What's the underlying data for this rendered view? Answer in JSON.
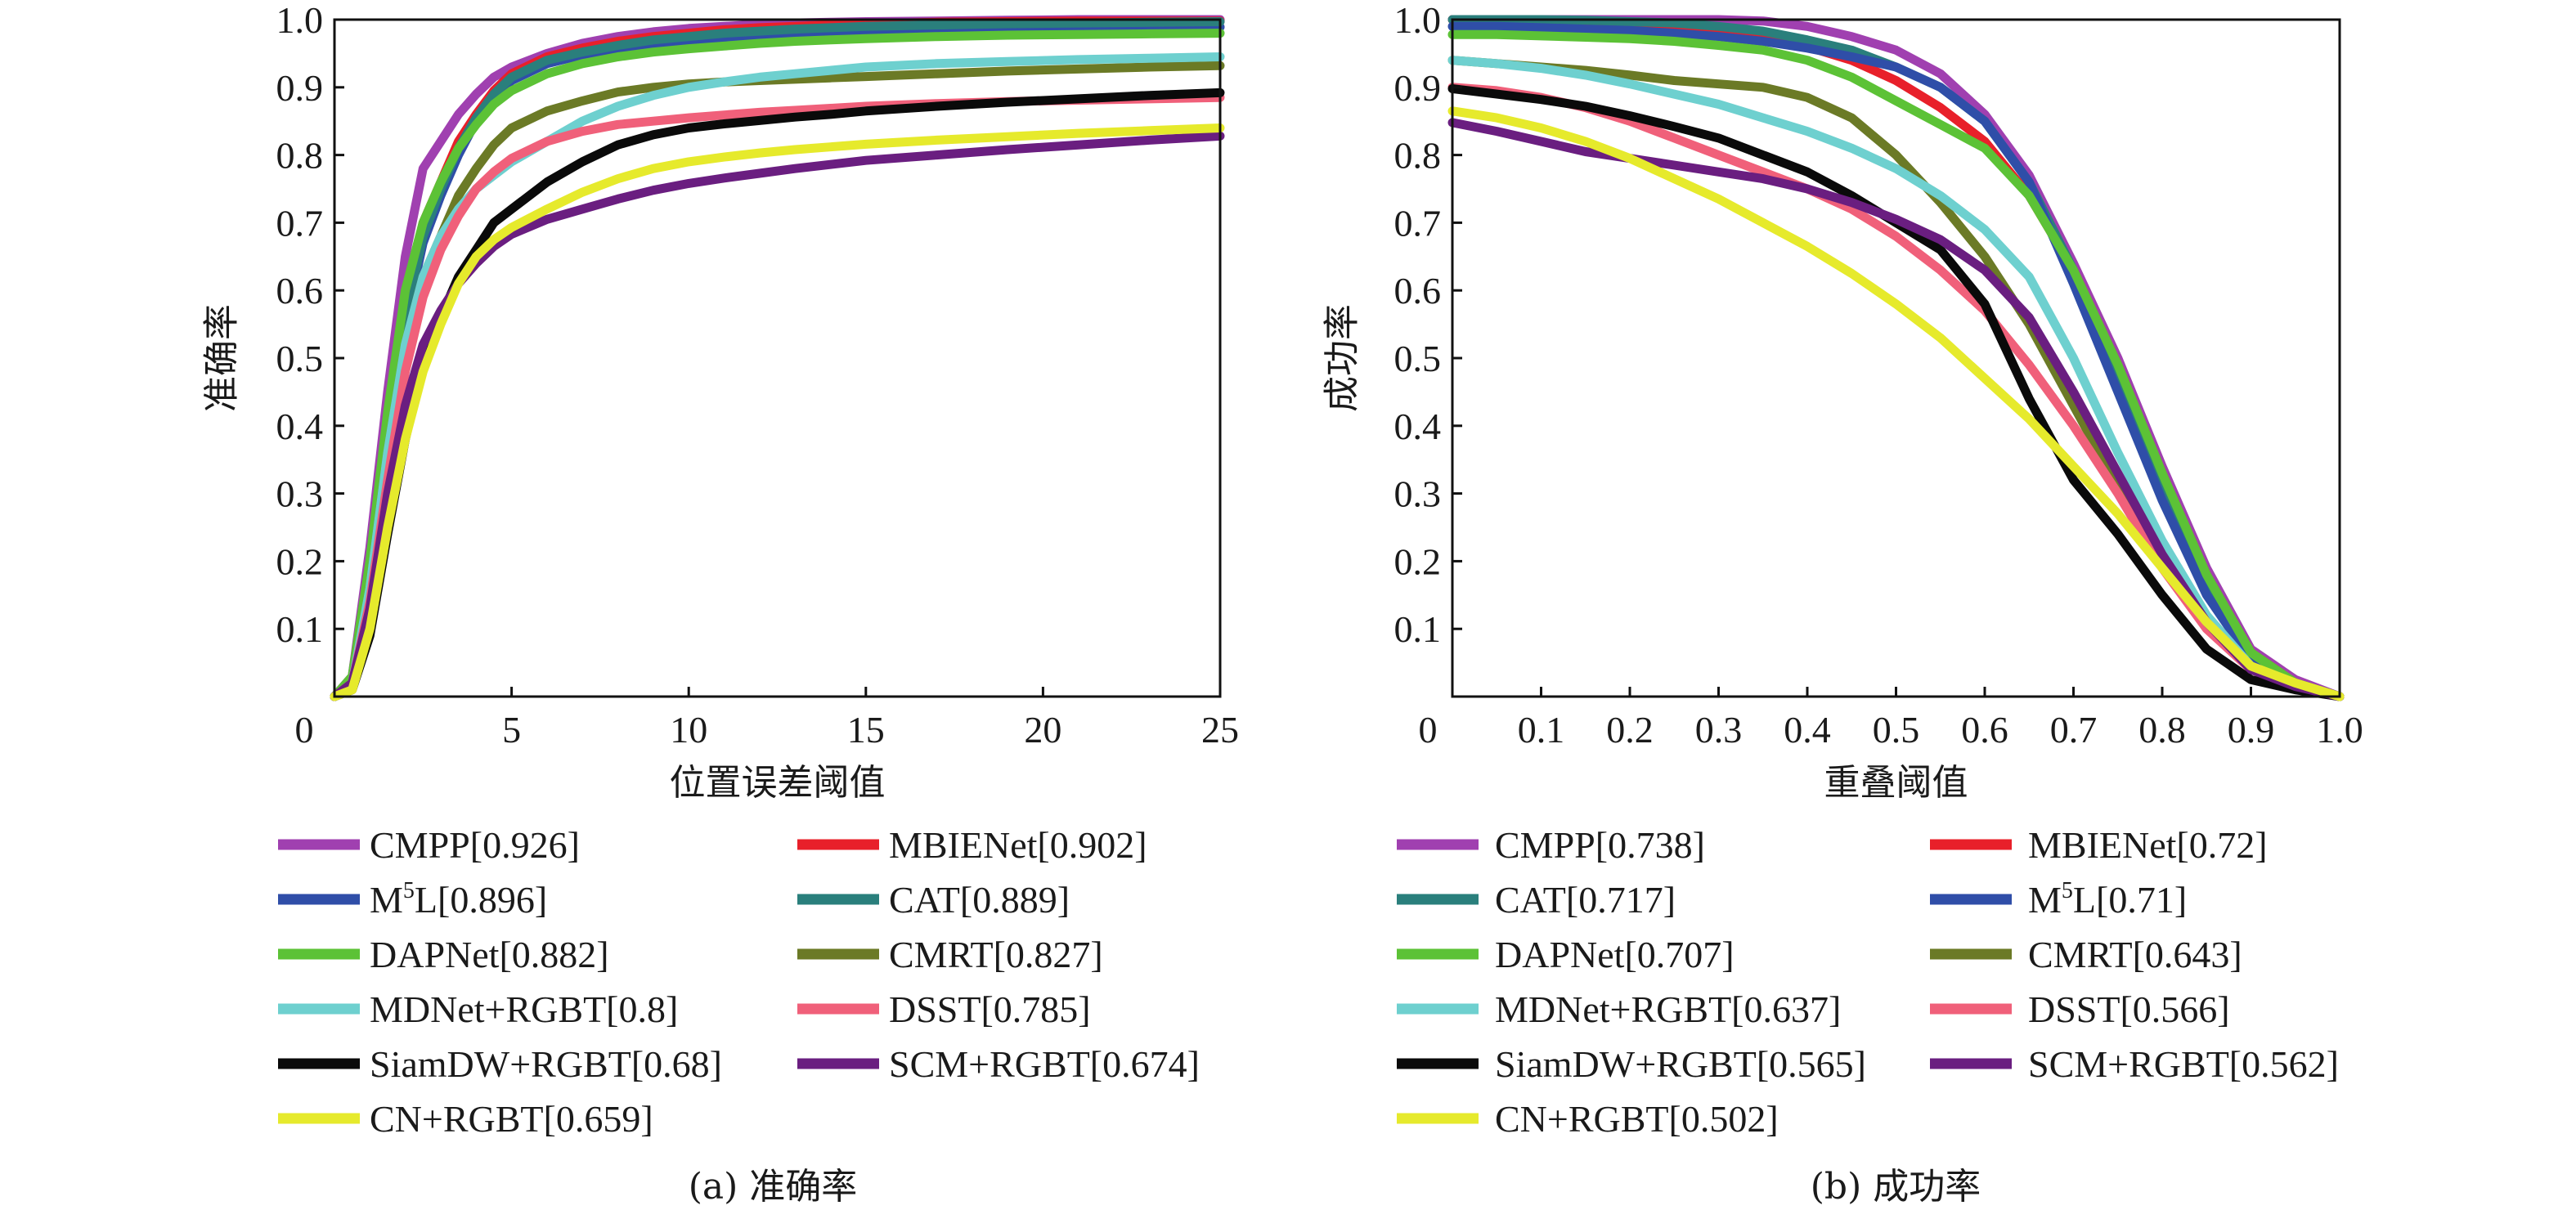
{
  "chart_data": [
    {
      "type": "line",
      "id": "precision",
      "title": "",
      "caption": "(a) 准确率",
      "xlabel": "位置误差阈值",
      "ylabel": "准确率",
      "xlim": [
        0,
        25
      ],
      "ylim": [
        0,
        1.0
      ],
      "xticks": [
        0,
        5,
        10,
        15,
        20,
        25
      ],
      "xtick_labels": [
        "0",
        "5",
        "10",
        "15",
        "20",
        "25"
      ],
      "yticks": [
        0.1,
        0.2,
        0.3,
        0.4,
        0.5,
        0.6,
        0.7,
        0.8,
        0.9,
        1.0
      ],
      "ytick_labels": [
        "0.1",
        "0.2",
        "0.3",
        "0.4",
        "0.5",
        "0.6",
        "0.7",
        "0.8",
        "0.9",
        "1.0"
      ],
      "grid": false,
      "legend_position": "bottom",
      "x": [
        0,
        0.5,
        1,
        1.5,
        2,
        2.5,
        3,
        3.5,
        4,
        4.5,
        5,
        6,
        7,
        8,
        9,
        10,
        11,
        12,
        13,
        14,
        15,
        17,
        19,
        21,
        23,
        25
      ],
      "series": [
        {
          "name": "CMPP[0.926]",
          "color": "#a040b0",
          "values": [
            0,
            0.03,
            0.22,
            0.45,
            0.65,
            0.78,
            0.82,
            0.86,
            0.89,
            0.915,
            0.93,
            0.95,
            0.965,
            0.975,
            0.982,
            0.987,
            0.99,
            0.993,
            0.995,
            0.996,
            0.997,
            0.998,
            0.999,
            1.0,
            1.0,
            1.0
          ]
        },
        {
          "name": "MBIENet[0.902]",
          "color": "#e8202a",
          "values": [
            0,
            0.02,
            0.18,
            0.4,
            0.58,
            0.7,
            0.76,
            0.82,
            0.86,
            0.895,
            0.92,
            0.945,
            0.958,
            0.968,
            0.975,
            0.98,
            0.985,
            0.988,
            0.99,
            0.992,
            0.994,
            0.996,
            0.997,
            0.998,
            0.998,
            0.998
          ]
        },
        {
          "name": "M5L[0.896]",
          "color": "#2f4ea8",
          "values": [
            0,
            0.02,
            0.17,
            0.38,
            0.55,
            0.67,
            0.74,
            0.8,
            0.85,
            0.885,
            0.91,
            0.935,
            0.948,
            0.956,
            0.962,
            0.966,
            0.97,
            0.973,
            0.976,
            0.978,
            0.98,
            0.983,
            0.985,
            0.987,
            0.988,
            0.989
          ]
        },
        {
          "name": "CAT[0.889]",
          "color": "#2a7f7c",
          "values": [
            0,
            0.02,
            0.17,
            0.38,
            0.56,
            0.68,
            0.75,
            0.81,
            0.855,
            0.89,
            0.915,
            0.94,
            0.952,
            0.962,
            0.97,
            0.975,
            0.98,
            0.983,
            0.986,
            0.988,
            0.99,
            0.992,
            0.994,
            0.995,
            0.996,
            0.997
          ]
        },
        {
          "name": "DAPNet[0.882]",
          "color": "#5cc236",
          "values": [
            0,
            0.03,
            0.2,
            0.42,
            0.6,
            0.7,
            0.76,
            0.81,
            0.845,
            0.875,
            0.895,
            0.92,
            0.935,
            0.945,
            0.952,
            0.957,
            0.961,
            0.965,
            0.968,
            0.97,
            0.972,
            0.975,
            0.977,
            0.978,
            0.979,
            0.98
          ]
        },
        {
          "name": "CMRT[0.827]",
          "color": "#6b7a26",
          "values": [
            0,
            0.02,
            0.16,
            0.36,
            0.52,
            0.62,
            0.68,
            0.74,
            0.78,
            0.815,
            0.84,
            0.865,
            0.88,
            0.893,
            0.9,
            0.905,
            0.908,
            0.91,
            0.912,
            0.914,
            0.916,
            0.92,
            0.924,
            0.927,
            0.93,
            0.932
          ]
        },
        {
          "name": "MDNet+RGBT[0.8]",
          "color": "#6ed0cf",
          "values": [
            0,
            0.02,
            0.16,
            0.36,
            0.52,
            0.62,
            0.68,
            0.72,
            0.75,
            0.77,
            0.79,
            0.82,
            0.85,
            0.872,
            0.888,
            0.9,
            0.908,
            0.915,
            0.92,
            0.925,
            0.93,
            0.935,
            0.938,
            0.941,
            0.943,
            0.945
          ]
        },
        {
          "name": "DSST[0.785]",
          "color": "#f0607a",
          "values": [
            0,
            0.02,
            0.14,
            0.32,
            0.48,
            0.59,
            0.66,
            0.71,
            0.75,
            0.775,
            0.795,
            0.82,
            0.835,
            0.845,
            0.85,
            0.855,
            0.859,
            0.863,
            0.866,
            0.869,
            0.872,
            0.876,
            0.879,
            0.881,
            0.883,
            0.885
          ]
        },
        {
          "name": "SiamDW+RGBT[0.68]",
          "color": "#0a0a0a",
          "values": [
            0,
            0.01,
            0.09,
            0.24,
            0.38,
            0.49,
            0.56,
            0.62,
            0.66,
            0.7,
            0.72,
            0.76,
            0.79,
            0.815,
            0.83,
            0.84,
            0.846,
            0.851,
            0.856,
            0.86,
            0.865,
            0.872,
            0.878,
            0.883,
            0.888,
            0.892
          ]
        },
        {
          "name": "SCM+RGBT[0.674]",
          "color": "#6a1e80",
          "values": [
            0,
            0.02,
            0.13,
            0.3,
            0.43,
            0.52,
            0.57,
            0.61,
            0.64,
            0.665,
            0.683,
            0.705,
            0.72,
            0.735,
            0.748,
            0.758,
            0.766,
            0.773,
            0.78,
            0.786,
            0.792,
            0.8,
            0.808,
            0.815,
            0.822,
            0.828
          ]
        },
        {
          "name": "CN+RGBT[0.659]",
          "color": "#e6ea2c",
          "values": [
            0,
            0.01,
            0.1,
            0.25,
            0.38,
            0.48,
            0.55,
            0.61,
            0.65,
            0.675,
            0.693,
            0.72,
            0.745,
            0.765,
            0.78,
            0.79,
            0.797,
            0.803,
            0.808,
            0.812,
            0.816,
            0.822,
            0.827,
            0.832,
            0.836,
            0.84
          ]
        }
      ]
    },
    {
      "type": "line",
      "id": "success",
      "title": "",
      "caption": "(b) 成功率",
      "xlabel": "重叠阈值",
      "ylabel": "成功率",
      "xlim": [
        0,
        1.0
      ],
      "ylim": [
        0,
        1.0
      ],
      "xticks": [
        0,
        0.1,
        0.2,
        0.3,
        0.4,
        0.5,
        0.6,
        0.7,
        0.8,
        0.9,
        1.0
      ],
      "xtick_labels": [
        "0",
        "0.1",
        "0.2",
        "0.3",
        "0.4",
        "0.5",
        "0.6",
        "0.7",
        "0.8",
        "0.9",
        "1.0"
      ],
      "yticks": [
        0.1,
        0.2,
        0.3,
        0.4,
        0.5,
        0.6,
        0.7,
        0.8,
        0.9,
        1.0
      ],
      "ytick_labels": [
        "0.1",
        "0.2",
        "0.3",
        "0.4",
        "0.5",
        "0.6",
        "0.7",
        "0.8",
        "0.9",
        "1.0"
      ],
      "grid": false,
      "legend_position": "bottom",
      "x": [
        0,
        0.05,
        0.1,
        0.15,
        0.2,
        0.25,
        0.3,
        0.35,
        0.4,
        0.45,
        0.5,
        0.55,
        0.6,
        0.65,
        0.7,
        0.75,
        0.8,
        0.85,
        0.9,
        0.95,
        1.0
      ],
      "series": [
        {
          "name": "CMPP[0.738]",
          "color": "#a040b0",
          "values": [
            1.0,
            1.0,
            1.0,
            1.0,
            1.0,
            1.0,
            1.0,
            0.998,
            0.99,
            0.975,
            0.955,
            0.92,
            0.86,
            0.77,
            0.64,
            0.5,
            0.34,
            0.19,
            0.07,
            0.025,
            0.0
          ]
        },
        {
          "name": "MBIENet[0.72]",
          "color": "#e8202a",
          "values": [
            1.0,
            1.0,
            0.998,
            0.996,
            0.993,
            0.99,
            0.985,
            0.975,
            0.96,
            0.94,
            0.91,
            0.87,
            0.82,
            0.74,
            0.63,
            0.49,
            0.33,
            0.18,
            0.065,
            0.02,
            0.0
          ]
        },
        {
          "name": "CAT[0.717]",
          "color": "#2a7f7c",
          "values": [
            1.0,
            1.0,
            1.0,
            0.999,
            0.997,
            0.995,
            0.99,
            0.983,
            0.97,
            0.955,
            0.93,
            0.9,
            0.85,
            0.76,
            0.63,
            0.48,
            0.32,
            0.17,
            0.06,
            0.02,
            0.0
          ]
        },
        {
          "name": "M5L[0.71]",
          "color": "#2f4ea8",
          "values": [
            0.99,
            0.99,
            0.988,
            0.986,
            0.984,
            0.98,
            0.975,
            0.968,
            0.958,
            0.945,
            0.93,
            0.9,
            0.85,
            0.76,
            0.61,
            0.45,
            0.29,
            0.15,
            0.055,
            0.02,
            0.0
          ]
        },
        {
          "name": "DAPNet[0.707]",
          "color": "#5cc236",
          "values": [
            0.978,
            0.978,
            0.976,
            0.974,
            0.972,
            0.968,
            0.962,
            0.955,
            0.94,
            0.915,
            0.88,
            0.845,
            0.81,
            0.74,
            0.63,
            0.49,
            0.33,
            0.18,
            0.065,
            0.02,
            0.0
          ]
        },
        {
          "name": "CMRT[0.643]",
          "color": "#6b7a26",
          "values": [
            0.94,
            0.935,
            0.93,
            0.925,
            0.918,
            0.91,
            0.905,
            0.9,
            0.885,
            0.855,
            0.8,
            0.73,
            0.65,
            0.55,
            0.43,
            0.31,
            0.2,
            0.11,
            0.045,
            0.015,
            0.0
          ]
        },
        {
          "name": "MDNet+RGBT[0.637]",
          "color": "#6ed0cf",
          "values": [
            0.94,
            0.935,
            0.928,
            0.918,
            0.905,
            0.89,
            0.875,
            0.855,
            0.835,
            0.81,
            0.78,
            0.74,
            0.69,
            0.62,
            0.5,
            0.36,
            0.23,
            0.12,
            0.045,
            0.015,
            0.0
          ]
        },
        {
          "name": "DSST[0.566]",
          "color": "#f0607a",
          "values": [
            0.9,
            0.895,
            0.885,
            0.87,
            0.85,
            0.825,
            0.8,
            0.775,
            0.75,
            0.72,
            0.68,
            0.63,
            0.57,
            0.49,
            0.4,
            0.3,
            0.19,
            0.1,
            0.04,
            0.015,
            0.0
          ]
        },
        {
          "name": "SiamDW+RGBT[0.565]",
          "color": "#0a0a0a",
          "values": [
            0.898,
            0.89,
            0.882,
            0.872,
            0.858,
            0.842,
            0.825,
            0.8,
            0.775,
            0.74,
            0.7,
            0.66,
            0.58,
            0.44,
            0.32,
            0.24,
            0.15,
            0.07,
            0.025,
            0.01,
            0.0
          ]
        },
        {
          "name": "SCM+RGBT[0.562]",
          "color": "#6a1e80",
          "values": [
            0.848,
            0.835,
            0.82,
            0.805,
            0.795,
            0.785,
            0.775,
            0.765,
            0.75,
            0.73,
            0.705,
            0.675,
            0.63,
            0.56,
            0.45,
            0.33,
            0.21,
            0.11,
            0.04,
            0.015,
            0.0
          ]
        },
        {
          "name": "CN+RGBT[0.502]",
          "color": "#e6ea2c",
          "values": [
            0.865,
            0.855,
            0.84,
            0.82,
            0.795,
            0.765,
            0.735,
            0.7,
            0.665,
            0.625,
            0.58,
            0.53,
            0.47,
            0.41,
            0.34,
            0.27,
            0.19,
            0.11,
            0.045,
            0.02,
            0.0
          ]
        }
      ]
    }
  ]
}
